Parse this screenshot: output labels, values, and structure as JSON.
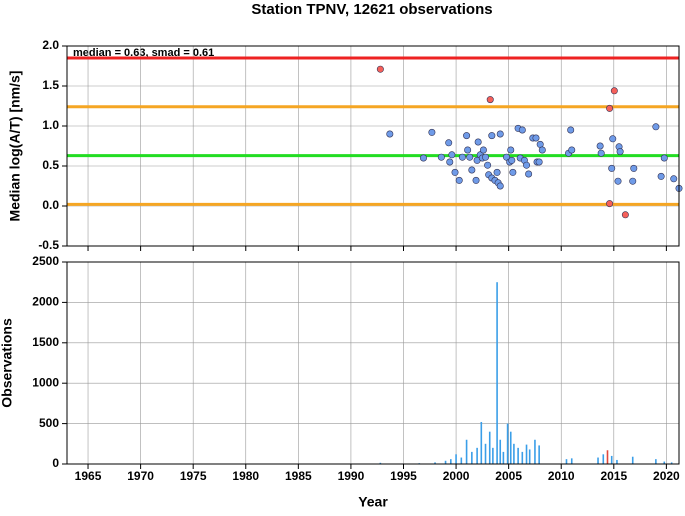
{
  "chart_data": [
    {
      "type": "scatter",
      "title": "Station TPNV, 12621 observations",
      "ylabel": "Median log(A/T) [nm/s]",
      "annotation": "median = 0.63, smad = 0.61",
      "xlim": [
        1963,
        2021.2
      ],
      "xticks": [
        1965,
        1970,
        1975,
        1980,
        1985,
        1990,
        1995,
        2000,
        2005,
        2010,
        2015,
        2020
      ],
      "ylim": [
        -0.5,
        2.0
      ],
      "yticks": [
        -0.5,
        {
          "value": 0,
          "label": "0.0"
        },
        0.5,
        {
          "value": 1,
          "label": "1.0"
        },
        1.5,
        {
          "value": 2,
          "label": "2.0"
        }
      ],
      "grid": true,
      "hlines": [
        {
          "value": 1.85,
          "color": "#ee2222"
        },
        {
          "value": 1.24,
          "color": "#f5a623"
        },
        {
          "value": 0.63,
          "color": "#22dd22"
        },
        {
          "value": 0.02,
          "color": "#f5a623"
        }
      ],
      "series": [
        {
          "color": "#6f9be8",
          "x": [
            1993.7,
            1996.9,
            1997.7,
            1998.6,
            1999.3,
            1999.4,
            1999.6,
            1999.9,
            2000.3,
            2000.6,
            2001.0,
            2001.1,
            2001.3,
            2001.5,
            2001.9,
            2002.0,
            2002.1,
            2002.3,
            2002.5,
            2002.6,
            2002.8,
            2003.0,
            2003.1,
            2003.4,
            2003.4,
            2003.7,
            2003.9,
            2004.0,
            2004.2,
            2004.2,
            2004.8,
            2005.1,
            2005.2,
            2005.3,
            2005.4,
            2005.9,
            2006.1,
            2006.3,
            2006.5,
            2006.7,
            2006.9,
            2007.3,
            2007.6,
            2007.7,
            2007.9,
            2008.0,
            2008.2,
            2010.7,
            2010.9,
            2011.0,
            2013.8,
            2013.7,
            2014.9,
            2014.8,
            2015.5,
            2015.6,
            2015.4,
            2016.9,
            2016.8,
            2019.0,
            2019.5,
            2019.8,
            2020.7,
            2021.2
          ],
          "values": [
            0.9,
            0.6,
            0.92,
            0.61,
            0.79,
            0.55,
            0.64,
            0.42,
            0.32,
            0.61,
            0.88,
            0.7,
            0.61,
            0.45,
            0.32,
            0.57,
            0.8,
            0.64,
            0.6,
            0.7,
            0.61,
            0.51,
            0.39,
            0.88,
            0.35,
            0.32,
            0.42,
            0.29,
            0.25,
            0.9,
            0.61,
            0.55,
            0.7,
            0.57,
            0.42,
            0.97,
            0.6,
            0.95,
            0.57,
            0.51,
            0.4,
            0.85,
            0.85,
            0.55,
            0.55,
            0.77,
            0.7,
            0.66,
            0.95,
            0.7,
            0.66,
            0.75,
            0.84,
            0.47,
            0.74,
            0.68,
            0.31,
            0.47,
            0.31,
            0.99,
            0.37,
            0.6,
            0.34,
            0.22
          ]
        },
        {
          "color": "#f5605a",
          "x": [
            1992.8,
            2003.25,
            2015.05,
            2014.6,
            2014.6,
            2016.1
          ],
          "values": [
            1.71,
            1.33,
            1.44,
            1.22,
            0.03,
            -0.11
          ]
        }
      ]
    },
    {
      "type": "bar",
      "xlabel": "Year",
      "ylabel": "Observations",
      "xlim": [
        1963,
        2021.2
      ],
      "xticks": [
        1965,
        1970,
        1975,
        1980,
        1985,
        1990,
        1995,
        2000,
        2005,
        2010,
        2015,
        2020
      ],
      "ylim": [
        0,
        2500
      ],
      "yticks": [
        0,
        500,
        1000,
        1500,
        2000,
        2500
      ],
      "grid": true,
      "series": [
        {
          "color": "#3a9ee8",
          "x": [
            1992.8,
            1996.5,
            1998,
            1999,
            1999.5,
            2000,
            2000.5,
            2001,
            2001.5,
            2002,
            2002.4,
            2002.8,
            2003.2,
            2003.5,
            2003.9,
            2004.2,
            2004.5,
            2004.9,
            2005.2,
            2005.5,
            2005.9,
            2006.3,
            2006.7,
            2007,
            2007.5,
            2007.9,
            2010.5,
            2011,
            2013.5,
            2014,
            2014.8,
            2015.3,
            2016.8,
            2019,
            2019.8,
            2020.5
          ],
          "values": [
            15,
            10,
            20,
            40,
            60,
            120,
            80,
            300,
            150,
            200,
            520,
            250,
            400,
            200,
            2250,
            300,
            150,
            500,
            400,
            250,
            200,
            150,
            240,
            180,
            300,
            230,
            60,
            70,
            80,
            120,
            100,
            50,
            90,
            60,
            30,
            20
          ]
        },
        {
          "color": "#e0483c",
          "x": [
            2014.4
          ],
          "values": [
            170
          ]
        }
      ]
    }
  ]
}
